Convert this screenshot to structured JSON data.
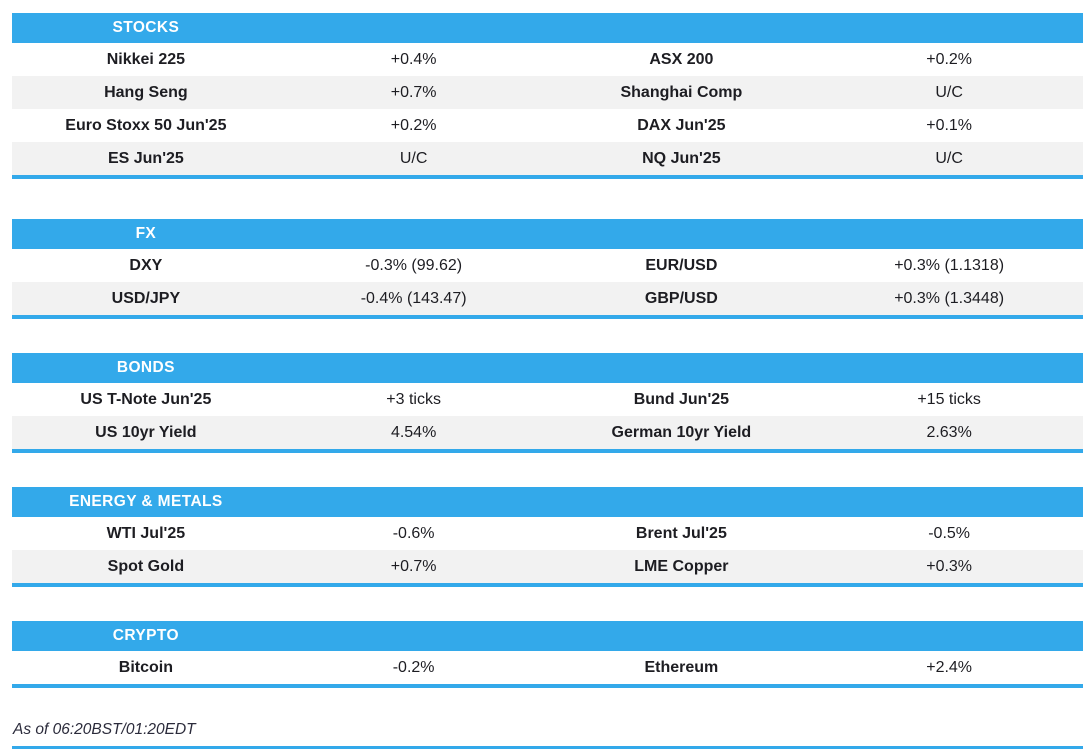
{
  "page": {
    "as_of": "As of 06:20BST/01:20EDT"
  },
  "colors": {
    "accent_blue": "#33a9ea",
    "row_alt_gray": "#f2f2f2",
    "text": "#1d1d22"
  },
  "sections": [
    {
      "title": "STOCKS",
      "rows": [
        {
          "left_name": "Nikkei 225",
          "left_value": "+0.4%",
          "right_name": "ASX 200",
          "right_value": "+0.2%"
        },
        {
          "left_name": "Hang Seng",
          "left_value": "+0.7%",
          "right_name": "Shanghai Comp",
          "right_value": "U/C"
        },
        {
          "left_name": "Euro Stoxx 50 Jun'25",
          "left_value": "+0.2%",
          "right_name": "DAX Jun'25",
          "right_value": "+0.1%"
        },
        {
          "left_name": "ES Jun'25",
          "left_value": "U/C",
          "right_name": "NQ Jun'25",
          "right_value": "U/C"
        }
      ]
    },
    {
      "title": "FX",
      "rows": [
        {
          "left_name": "DXY",
          "left_value": "-0.3% (99.62)",
          "right_name": "EUR/USD",
          "right_value": "+0.3% (1.1318)"
        },
        {
          "left_name": "USD/JPY",
          "left_value": "-0.4% (143.47)",
          "right_name": "GBP/USD",
          "right_value": "+0.3% (1.3448)"
        }
      ]
    },
    {
      "title": "BONDS",
      "rows": [
        {
          "left_name": "US T-Note Jun'25",
          "left_value": "+3 ticks",
          "right_name": "Bund Jun'25",
          "right_value": "+15 ticks"
        },
        {
          "left_name": "US 10yr Yield",
          "left_value": "4.54%",
          "right_name": "German 10yr Yield",
          "right_value": "2.63%"
        }
      ]
    },
    {
      "title": "ENERGY & METALS",
      "rows": [
        {
          "left_name": "WTI Jul'25",
          "left_value": "-0.6%",
          "right_name": "Brent Jul'25",
          "right_value": "-0.5%"
        },
        {
          "left_name": "Spot Gold",
          "left_value": "+0.7%",
          "right_name": "LME Copper",
          "right_value": "+0.3%"
        }
      ]
    },
    {
      "title": "CRYPTO",
      "rows": [
        {
          "left_name": "Bitcoin",
          "left_value": "-0.2%",
          "right_name": "Ethereum",
          "right_value": "+2.4%"
        }
      ]
    }
  ]
}
